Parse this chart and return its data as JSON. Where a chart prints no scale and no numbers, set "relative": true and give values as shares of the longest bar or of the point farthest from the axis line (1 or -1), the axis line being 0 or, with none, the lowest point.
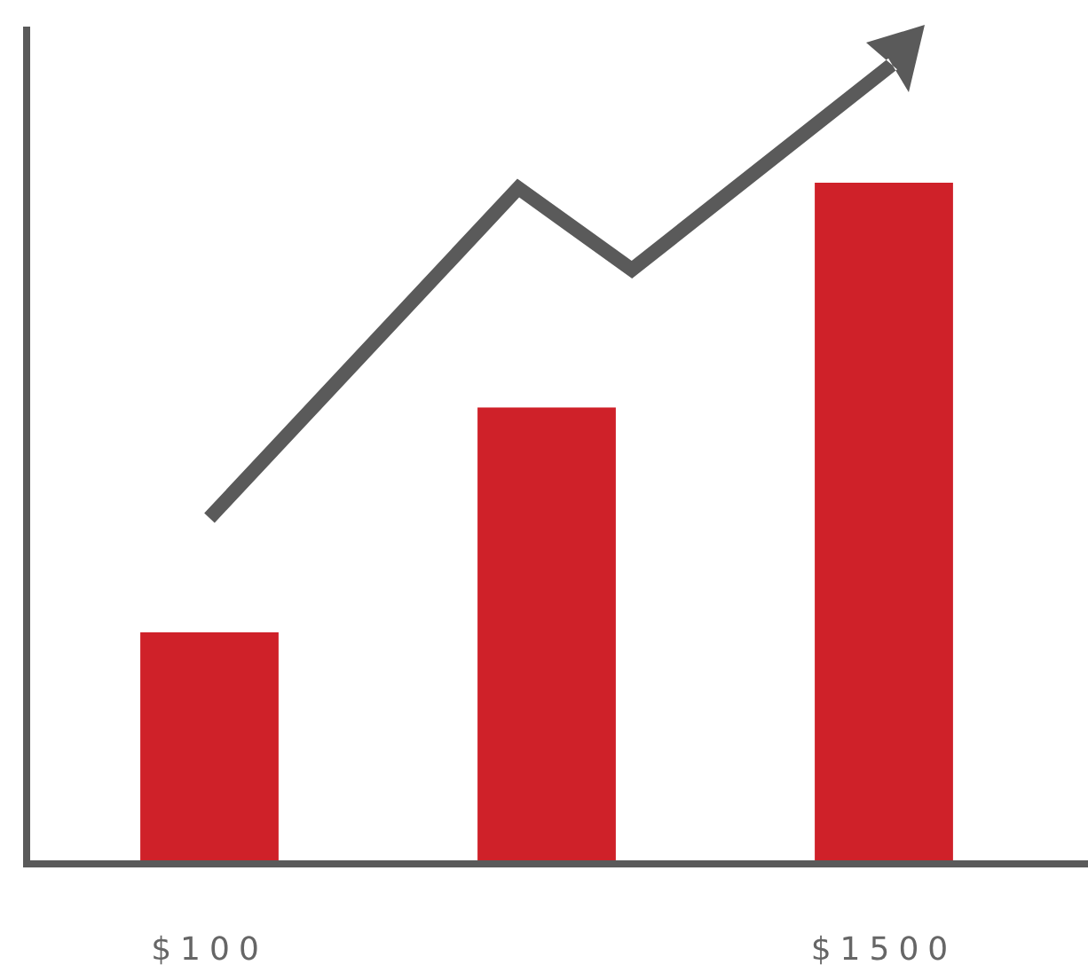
{
  "chart_data": {
    "type": "bar",
    "relative": true,
    "categories": [
      "$100",
      null,
      "$1500"
    ],
    "values": [
      0.34,
      0.67,
      1
    ],
    "color": "#cf2129"
  }
}
